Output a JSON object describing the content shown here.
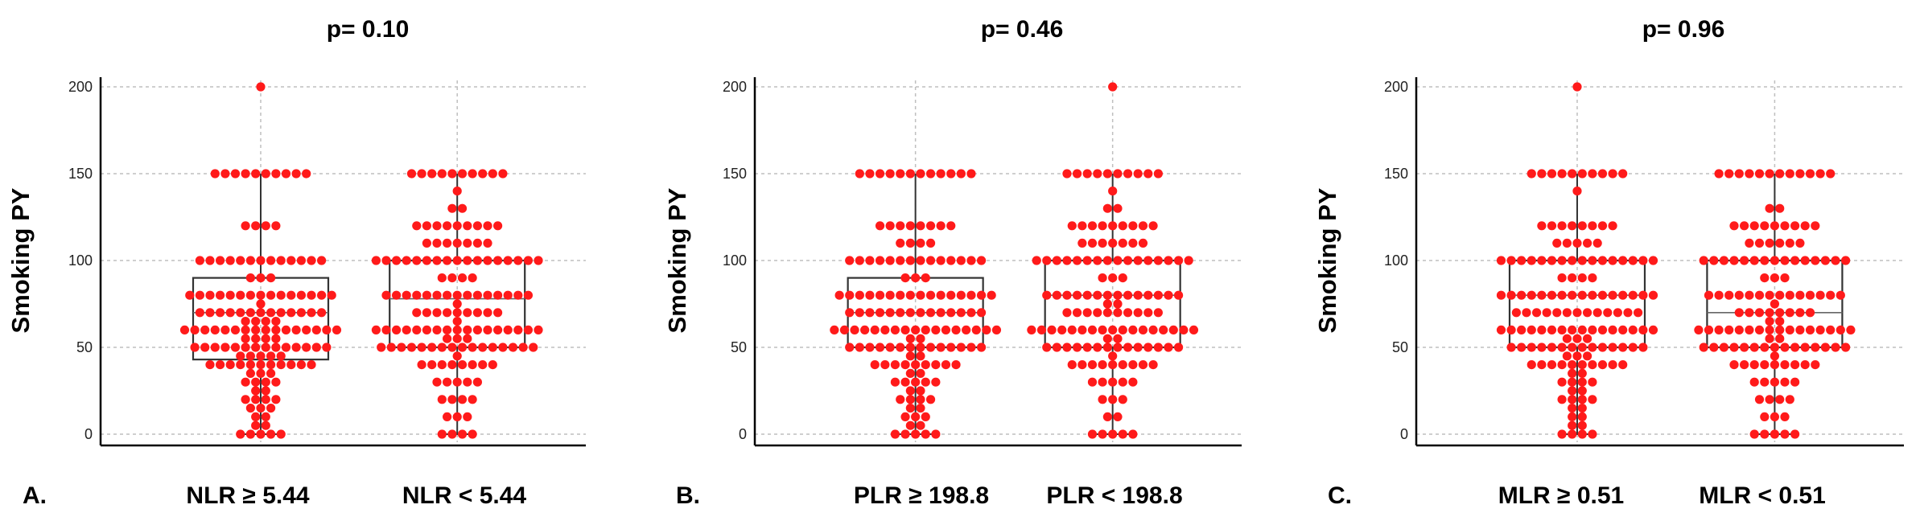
{
  "colors": {
    "dots": "#ff1a1a",
    "box": "#333333",
    "grid": "#bfbfbf",
    "axis": "#000000"
  },
  "chart_data": [
    {
      "type": "box_dot",
      "panel_label": "A.",
      "p_value": "p= 0.10",
      "ylabel": "Smoking PY",
      "ylim": [
        0,
        200
      ],
      "yticks": [
        "0",
        "50",
        "100",
        "150",
        "200"
      ],
      "grid": true,
      "categories": [
        "NLR ≥ 5.44",
        "NLR < 5.44"
      ],
      "boxes": [
        {
          "q1": 43,
          "median": 70,
          "q3": 90,
          "whisker_low": 0,
          "whisker_high": 150
        },
        {
          "q1": 50,
          "median": 78,
          "q3": 100,
          "whisker_low": 0,
          "whisker_high": 150
        }
      ],
      "points": [
        {
          "name": "NLR ≥ 5.44",
          "values": [
            200,
            150,
            150,
            150,
            150,
            150,
            150,
            150,
            150,
            150,
            150,
            120,
            120,
            120,
            120,
            100,
            100,
            100,
            100,
            100,
            100,
            100,
            100,
            100,
            100,
            100,
            100,
            100,
            90,
            90,
            90,
            80,
            80,
            80,
            80,
            80,
            80,
            80,
            80,
            80,
            80,
            80,
            80,
            80,
            80,
            80,
            75,
            70,
            70,
            70,
            70,
            70,
            70,
            70,
            70,
            70,
            70,
            70,
            70,
            70,
            65,
            65,
            65,
            65,
            60,
            60,
            60,
            60,
            60,
            60,
            60,
            60,
            60,
            60,
            60,
            60,
            60,
            60,
            60,
            60,
            55,
            55,
            55,
            55,
            50,
            50,
            50,
            50,
            50,
            50,
            50,
            50,
            50,
            50,
            50,
            50,
            50,
            50,
            45,
            45,
            45,
            45,
            45,
            40,
            40,
            40,
            40,
            40,
            40,
            40,
            40,
            40,
            40,
            40,
            35,
            35,
            35,
            30,
            30,
            30,
            30,
            25,
            25,
            20,
            20,
            20,
            20,
            15,
            15,
            15,
            10,
            10,
            5,
            5,
            0,
            0,
            0,
            0,
            0
          ]
        },
        {
          "name": "NLR < 5.44",
          "values": [
            150,
            150,
            150,
            150,
            150,
            150,
            150,
            150,
            150,
            150,
            140,
            130,
            130,
            120,
            120,
            120,
            120,
            120,
            120,
            120,
            120,
            120,
            110,
            110,
            110,
            110,
            110,
            110,
            110,
            100,
            100,
            100,
            100,
            100,
            100,
            100,
            100,
            100,
            100,
            100,
            100,
            100,
            100,
            100,
            100,
            100,
            90,
            90,
            90,
            90,
            80,
            80,
            80,
            80,
            80,
            80,
            80,
            80,
            80,
            80,
            80,
            80,
            80,
            80,
            80,
            75,
            70,
            70,
            70,
            70,
            70,
            70,
            70,
            70,
            70,
            65,
            60,
            60,
            60,
            60,
            60,
            60,
            60,
            60,
            60,
            60,
            60,
            60,
            60,
            60,
            60,
            60,
            60,
            55,
            55,
            55,
            50,
            50,
            50,
            50,
            50,
            50,
            50,
            50,
            50,
            50,
            50,
            50,
            50,
            50,
            50,
            50,
            45,
            40,
            40,
            40,
            40,
            40,
            40,
            40,
            40,
            30,
            30,
            30,
            30,
            30,
            20,
            20,
            20,
            20,
            10,
            10,
            10,
            0,
            0,
            0,
            0
          ]
        }
      ]
    },
    {
      "type": "box_dot",
      "panel_label": "B.",
      "p_value": "p= 0.46",
      "ylabel": "Smoking PY",
      "ylim": [
        0,
        200
      ],
      "yticks": [
        "0",
        "50",
        "100",
        "150",
        "200"
      ],
      "grid": true,
      "categories": [
        "PLR ≥ 198.8",
        "PLR < 198.8"
      ],
      "boxes": [
        {
          "q1": 50,
          "median": 70,
          "q3": 90,
          "whisker_low": 0,
          "whisker_high": 150
        },
        {
          "q1": 50,
          "median": 80,
          "q3": 100,
          "whisker_low": 0,
          "whisker_high": 150
        }
      ],
      "points": [
        {
          "name": "PLR ≥ 198.8",
          "values": [
            150,
            150,
            150,
            150,
            150,
            150,
            150,
            150,
            150,
            150,
            150,
            150,
            120,
            120,
            120,
            120,
            120,
            120,
            120,
            120,
            110,
            110,
            110,
            110,
            100,
            100,
            100,
            100,
            100,
            100,
            100,
            100,
            100,
            100,
            100,
            100,
            100,
            100,
            90,
            90,
            90,
            80,
            80,
            80,
            80,
            80,
            80,
            80,
            80,
            80,
            80,
            80,
            80,
            80,
            80,
            80,
            80,
            70,
            70,
            70,
            70,
            70,
            70,
            70,
            70,
            70,
            70,
            70,
            70,
            70,
            70,
            60,
            60,
            60,
            60,
            60,
            60,
            60,
            60,
            60,
            60,
            60,
            60,
            60,
            60,
            60,
            60,
            60,
            55,
            55,
            50,
            50,
            50,
            50,
            50,
            50,
            50,
            50,
            50,
            50,
            50,
            50,
            50,
            50,
            45,
            45,
            40,
            40,
            40,
            40,
            40,
            40,
            40,
            40,
            40,
            35,
            35,
            30,
            30,
            30,
            30,
            30,
            25,
            25,
            20,
            20,
            20,
            20,
            15,
            15,
            10,
            10,
            10,
            5,
            5,
            0,
            0,
            0,
            0,
            0
          ]
        },
        {
          "name": "PLR < 198.8",
          "values": [
            200,
            150,
            150,
            150,
            150,
            150,
            150,
            150,
            150,
            150,
            150,
            140,
            130,
            130,
            120,
            120,
            120,
            120,
            120,
            120,
            120,
            120,
            120,
            110,
            110,
            110,
            110,
            110,
            110,
            110,
            100,
            100,
            100,
            100,
            100,
            100,
            100,
            100,
            100,
            100,
            100,
            100,
            100,
            100,
            100,
            100,
            90,
            90,
            90,
            80,
            80,
            80,
            80,
            80,
            80,
            80,
            80,
            80,
            80,
            80,
            80,
            80,
            80,
            75,
            75,
            70,
            70,
            70,
            70,
            70,
            70,
            70,
            70,
            70,
            70,
            60,
            60,
            60,
            60,
            60,
            60,
            60,
            60,
            60,
            60,
            60,
            60,
            60,
            60,
            60,
            60,
            60,
            55,
            55,
            50,
            50,
            50,
            50,
            50,
            50,
            50,
            50,
            50,
            50,
            50,
            50,
            50,
            50,
            45,
            40,
            40,
            40,
            40,
            40,
            40,
            40,
            40,
            40,
            30,
            30,
            30,
            30,
            30,
            20,
            20,
            20,
            10,
            10,
            0,
            0,
            0,
            0,
            0
          ]
        }
      ]
    },
    {
      "type": "box_dot",
      "panel_label": "C.",
      "p_value": "p= 0.96",
      "ylabel": "Smoking PY",
      "ylim": [
        0,
        200
      ],
      "yticks": [
        "0",
        "50",
        "100",
        "150",
        "200"
      ],
      "grid": true,
      "categories": [
        "MLR ≥ 0.51",
        "MLR < 0.51"
      ],
      "boxes": [
        {
          "q1": 50,
          "median": 80,
          "q3": 100,
          "whisker_low": 0,
          "whisker_high": 150
        },
        {
          "q1": 50,
          "median": 70,
          "q3": 100,
          "whisker_low": 0,
          "whisker_high": 150
        }
      ],
      "points": [
        {
          "name": "MLR ≥ 0.51",
          "values": [
            200,
            150,
            150,
            150,
            150,
            150,
            150,
            150,
            150,
            150,
            150,
            140,
            120,
            120,
            120,
            120,
            120,
            120,
            120,
            120,
            110,
            110,
            110,
            110,
            110,
            100,
            100,
            100,
            100,
            100,
            100,
            100,
            100,
            100,
            100,
            100,
            100,
            100,
            100,
            100,
            100,
            90,
            90,
            90,
            90,
            80,
            80,
            80,
            80,
            80,
            80,
            80,
            80,
            80,
            80,
            80,
            80,
            80,
            80,
            80,
            80,
            70,
            70,
            70,
            70,
            70,
            70,
            70,
            70,
            70,
            70,
            70,
            70,
            70,
            60,
            60,
            60,
            60,
            60,
            60,
            60,
            60,
            60,
            60,
            60,
            60,
            60,
            60,
            60,
            60,
            55,
            55,
            55,
            50,
            50,
            50,
            50,
            50,
            50,
            50,
            50,
            50,
            50,
            50,
            50,
            50,
            50,
            45,
            45,
            45,
            40,
            40,
            40,
            40,
            40,
            40,
            40,
            40,
            40,
            40,
            35,
            35,
            30,
            30,
            30,
            30,
            25,
            25,
            20,
            20,
            20,
            20,
            15,
            15,
            10,
            10,
            5,
            5,
            0,
            0,
            0,
            0
          ]
        },
        {
          "name": "MLR < 0.51",
          "values": [
            150,
            150,
            150,
            150,
            150,
            150,
            150,
            150,
            150,
            150,
            150,
            150,
            130,
            130,
            120,
            120,
            120,
            120,
            120,
            120,
            120,
            120,
            120,
            110,
            110,
            110,
            110,
            110,
            110,
            100,
            100,
            100,
            100,
            100,
            100,
            100,
            100,
            100,
            100,
            100,
            100,
            100,
            100,
            100,
            90,
            90,
            90,
            80,
            80,
            80,
            80,
            80,
            80,
            80,
            80,
            80,
            80,
            80,
            80,
            80,
            80,
            75,
            70,
            70,
            70,
            70,
            70,
            70,
            70,
            70,
            65,
            65,
            60,
            60,
            60,
            60,
            60,
            60,
            60,
            60,
            60,
            60,
            60,
            60,
            60,
            60,
            60,
            60,
            55,
            55,
            50,
            50,
            50,
            50,
            50,
            50,
            50,
            50,
            50,
            50,
            50,
            50,
            50,
            50,
            50,
            45,
            40,
            40,
            40,
            40,
            40,
            40,
            40,
            40,
            40,
            30,
            30,
            30,
            30,
            30,
            20,
            20,
            20,
            20,
            10,
            10,
            10,
            0,
            0,
            0,
            0,
            0
          ]
        }
      ]
    }
  ]
}
